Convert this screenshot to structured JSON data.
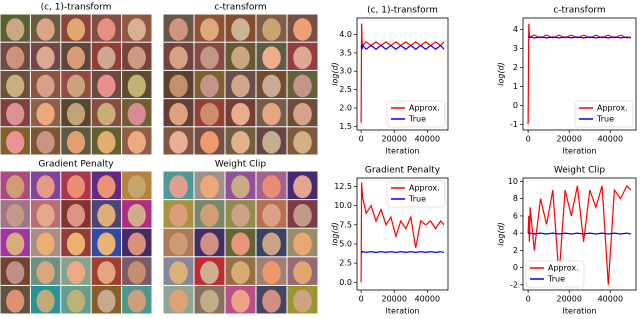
{
  "image_grids": [
    {
      "title": "(c, 1)-transform"
    },
    {
      "title": "c-transform"
    },
    {
      "title": "Gradient Penalty"
    },
    {
      "title": "Weight Clip"
    }
  ],
  "chart_data": [
    {
      "type": "line",
      "title": "(c, 1)-transform",
      "x_label": "Iteration",
      "y_label": "log(d)",
      "x": [
        0,
        300,
        600,
        1000,
        3000,
        6000,
        9000,
        12000,
        15000,
        18000,
        21000,
        24000,
        27000,
        30000,
        33000,
        36000,
        39000,
        42000,
        45000,
        48000,
        50000
      ],
      "series": [
        {
          "name": "Approx.",
          "color": "#ff0000",
          "values": [
            1.6,
            4.3,
            3.8,
            3.7,
            3.8,
            3.7,
            3.8,
            3.7,
            3.8,
            3.7,
            3.8,
            3.7,
            3.8,
            3.7,
            3.8,
            3.7,
            3.8,
            3.7,
            3.8,
            3.7,
            3.8
          ]
        },
        {
          "name": "True",
          "color": "#0000ff",
          "values": [
            3.7,
            3.65,
            3.6,
            3.7,
            3.6,
            3.7,
            3.6,
            3.7,
            3.6,
            3.7,
            3.6,
            3.7,
            3.6,
            3.7,
            3.6,
            3.7,
            3.6,
            3.7,
            3.6,
            3.7,
            3.6
          ]
        }
      ],
      "xlim": [
        -2500,
        52500
      ],
      "xticks": [
        0,
        20000,
        40000
      ],
      "ylim": [
        1.4,
        4.45
      ],
      "yticks": [
        1.5,
        {
          "value": 2,
          "label": "2.0"
        },
        2.5,
        {
          "value": 3,
          "label": "3.0"
        },
        3.5,
        {
          "value": 4,
          "label": "4.0"
        }
      ],
      "legend": "lower right"
    },
    {
      "type": "line",
      "title": "c-transform",
      "x_label": "Iteration",
      "y_label": "log(d)",
      "x": [
        0,
        300,
        600,
        1000,
        3000,
        6000,
        9000,
        12000,
        15000,
        18000,
        21000,
        24000,
        27000,
        30000,
        33000,
        36000,
        39000,
        42000,
        45000,
        48000,
        50000
      ],
      "series": [
        {
          "name": "Approx.",
          "color": "#ff0000",
          "values": [
            -1,
            4.3,
            3.7,
            3.6,
            3.7,
            3.55,
            3.7,
            3.55,
            3.7,
            3.55,
            3.7,
            3.55,
            3.7,
            3.55,
            3.7,
            3.55,
            3.7,
            3.55,
            3.7,
            3.55,
            3.6
          ]
        },
        {
          "name": "True",
          "color": "#0000ff",
          "values": [
            3.6,
            3.6,
            3.55,
            3.6,
            3.55,
            3.6,
            3.55,
            3.6,
            3.55,
            3.6,
            3.55,
            3.6,
            3.55,
            3.6,
            3.55,
            3.6,
            3.55,
            3.6,
            3.55,
            3.6,
            3.55
          ]
        }
      ],
      "xlim": [
        -2500,
        52500
      ],
      "xticks": [
        0,
        20000,
        40000
      ],
      "ylim": [
        -1.3,
        4.6
      ],
      "yticks": [
        -1,
        0,
        1,
        2,
        3,
        4
      ],
      "legend": "lower right"
    },
    {
      "type": "line",
      "title": "Gradient Penalty",
      "x_label": "Iteration",
      "y_label": "log(d)",
      "x": [
        0,
        300,
        600,
        1000,
        3000,
        6000,
        9000,
        12000,
        15000,
        18000,
        21000,
        24000,
        27000,
        30000,
        33000,
        36000,
        39000,
        42000,
        45000,
        48000,
        50000
      ],
      "series": [
        {
          "name": "Approx.",
          "color": "#ff0000",
          "values": [
            0,
            13,
            12,
            11,
            9,
            10,
            8,
            9.5,
            7.5,
            8.5,
            6,
            8,
            7,
            8.5,
            4.5,
            8,
            7.5,
            8,
            7,
            8,
            7.5
          ]
        },
        {
          "name": "True",
          "color": "#0000ff",
          "values": [
            4,
            4,
            3.9,
            4,
            3.9,
            4,
            3.9,
            4,
            3.9,
            4,
            3.9,
            4,
            3.9,
            4,
            3.9,
            4,
            3.9,
            4,
            3.9,
            4,
            3.9
          ]
        }
      ],
      "xlim": [
        -2500,
        52500
      ],
      "xticks": [
        0,
        20000,
        40000
      ],
      "ylim": [
        -1,
        13.6
      ],
      "yticks": [
        {
          "value": 0,
          "label": "0.0"
        },
        2.5,
        {
          "value": 5,
          "label": "5.0"
        },
        7.5,
        {
          "value": 10,
          "label": "10.0"
        },
        12.5
      ],
      "legend": "upper right"
    },
    {
      "type": "line",
      "title": "Weight Clip",
      "x_label": "Iteration",
      "y_label": "log(d)",
      "x": [
        0,
        300,
        600,
        1000,
        3000,
        6000,
        9000,
        12000,
        15000,
        18000,
        21000,
        24000,
        27000,
        30000,
        33000,
        36000,
        39000,
        42000,
        45000,
        48000,
        50000
      ],
      "series": [
        {
          "name": "Approx.",
          "color": "#ff0000",
          "values": [
            4,
            6,
            3,
            7,
            2,
            8,
            5,
            9,
            -1,
            9,
            6,
            9.5,
            3,
            9,
            7,
            9.5,
            -2,
            9,
            8,
            9.5,
            9
          ]
        },
        {
          "name": "True",
          "color": "#0000ff",
          "values": [
            4,
            4,
            3.9,
            4,
            3.9,
            4,
            3.9,
            4,
            3.9,
            4,
            3.9,
            4,
            3.9,
            4,
            3.9,
            4,
            3.9,
            4,
            3.9,
            4,
            3.9
          ]
        }
      ],
      "xlim": [
        -2500,
        52500
      ],
      "xticks": [
        0,
        20000,
        40000
      ],
      "ylim": [
        -2.6,
        10.4
      ],
      "yticks": [
        -2,
        0,
        2,
        4,
        6,
        8,
        10
      ],
      "legend": "lower left"
    }
  ]
}
